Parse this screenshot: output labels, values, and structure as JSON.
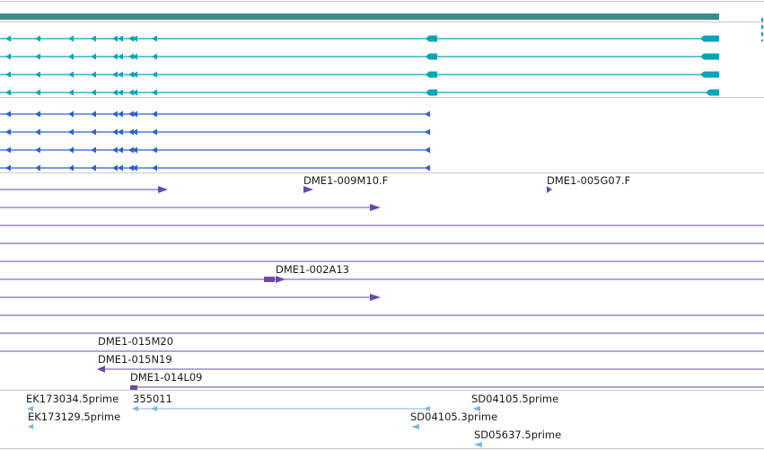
{
  "colors": {
    "background": "#ffffff",
    "separator": "#c8c8c8",
    "gene_bar": "#3d8c8c",
    "transcript": "#0aa3b8",
    "cds_transcript": "#2e62c9",
    "clone": "#6a4aa8",
    "est": "#79b7dc",
    "label_text": "#1a1a1a"
  },
  "icons": {
    "strand_marker": "arrow-left-icon",
    "clone_end": "arrow-right-icon"
  },
  "tracks": {
    "gene": {
      "name": "gene-span"
    },
    "transcripts": {
      "count": 4
    },
    "cds": {
      "count": 4
    },
    "clones": {
      "labels": [
        "DME1-009M10.F",
        "DME1-005G07.F",
        "DME1-002A13",
        "DME1-015M20",
        "DME1-015N19",
        "DME1-014L09"
      ]
    },
    "ests": {
      "labels": [
        "EK173034.5prime",
        "355011",
        "SD04105.5prime",
        "EK173129.5prime",
        "SD04105.3prime",
        "SD05637.5prime"
      ]
    }
  }
}
